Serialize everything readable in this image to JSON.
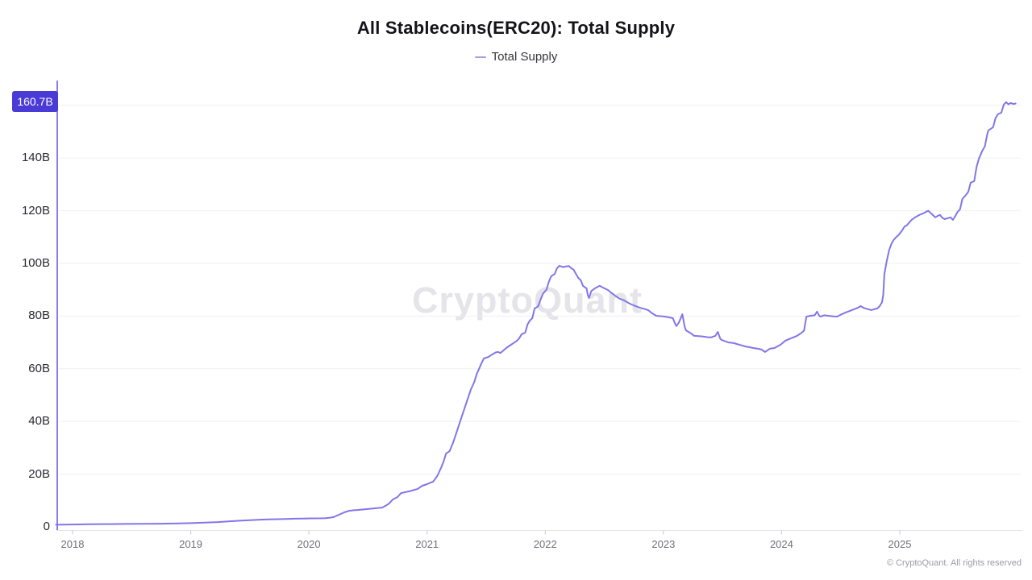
{
  "chart": {
    "title": "All Stablecoins(ERC20): Total Supply",
    "legend": {
      "label": "Total Supply"
    },
    "latest_badge": "160.7B",
    "watermark": "CryptoQuant"
  },
  "footer": {
    "copyright": "© CryptoQuant. All rights reserved"
  },
  "colors": {
    "line": "#8176e9",
    "legend_dash": "#a79ee9",
    "badge_bg": "#4b3bd6",
    "badge_text": "#ffffff",
    "y_axis_line": "#8a7cec",
    "x_axis_line": "#e3e3e8",
    "tick_mark": "#c9c9d0",
    "grid": "#efeff2",
    "watermark": "#e4e4e9"
  },
  "chart_data": {
    "type": "line",
    "title": "All Stablecoins(ERC20): Total Supply",
    "legend_entries": [
      "Total Supply"
    ],
    "legend_position": "top",
    "grid": true,
    "unit": "B",
    "xlim": [
      2017.86,
      2026.0
    ],
    "ylim": [
      0,
      170
    ],
    "x_ticks": [
      2018,
      2019,
      2020,
      2021,
      2022,
      2023,
      2024,
      2025
    ],
    "y_ticks": [
      0,
      20,
      40,
      60,
      80,
      100,
      120,
      140
    ],
    "y_grid": [
      20,
      40,
      60,
      80,
      100,
      120,
      140,
      160
    ],
    "latest": {
      "label": "160.7B",
      "value": 160.7
    },
    "series": [
      {
        "name": "Total Supply",
        "color": "#8176e9",
        "points": [
          [
            2017.86,
            0.8
          ],
          [
            2018.0,
            0.9
          ],
          [
            2018.15,
            1.0
          ],
          [
            2018.3,
            1.05
          ],
          [
            2018.45,
            1.1
          ],
          [
            2018.6,
            1.15
          ],
          [
            2018.75,
            1.2
          ],
          [
            2018.9,
            1.3
          ],
          [
            2019.0,
            1.4
          ],
          [
            2019.1,
            1.55
          ],
          [
            2019.23,
            1.8
          ],
          [
            2019.33,
            2.1
          ],
          [
            2019.43,
            2.4
          ],
          [
            2019.5,
            2.55
          ],
          [
            2019.57,
            2.7
          ],
          [
            2019.65,
            2.8
          ],
          [
            2019.74,
            2.9
          ],
          [
            2019.81,
            3.0
          ],
          [
            2019.88,
            3.1
          ],
          [
            2019.95,
            3.15
          ],
          [
            2020.02,
            3.2
          ],
          [
            2020.1,
            3.25
          ],
          [
            2020.14,
            3.3
          ],
          [
            2020.18,
            3.5
          ],
          [
            2020.21,
            3.7
          ],
          [
            2020.24,
            4.3
          ],
          [
            2020.27,
            4.9
          ],
          [
            2020.3,
            5.5
          ],
          [
            2020.34,
            6.1
          ],
          [
            2020.38,
            6.3
          ],
          [
            2020.41,
            6.4
          ],
          [
            2020.48,
            6.7
          ],
          [
            2020.55,
            7.0
          ],
          [
            2020.62,
            7.3
          ],
          [
            2020.65,
            8.0
          ],
          [
            2020.68,
            8.9
          ],
          [
            2020.71,
            10.4
          ],
          [
            2020.75,
            11.3
          ],
          [
            2020.78,
            12.8
          ],
          [
            2020.82,
            13.2
          ],
          [
            2020.85,
            13.5
          ],
          [
            2020.89,
            14.0
          ],
          [
            2020.92,
            14.4
          ],
          [
            2020.96,
            15.6
          ],
          [
            2021.0,
            16.2
          ],
          [
            2021.03,
            16.8
          ],
          [
            2021.05,
            17.1
          ],
          [
            2021.07,
            18.3
          ],
          [
            2021.09,
            19.6
          ],
          [
            2021.12,
            22.6
          ],
          [
            2021.14,
            24.8
          ],
          [
            2021.16,
            27.8
          ],
          [
            2021.19,
            28.7
          ],
          [
            2021.22,
            32
          ],
          [
            2021.25,
            36
          ],
          [
            2021.28,
            40
          ],
          [
            2021.31,
            44
          ],
          [
            2021.34,
            48
          ],
          [
            2021.37,
            52
          ],
          [
            2021.4,
            55
          ],
          [
            2021.42,
            58
          ],
          [
            2021.44,
            60
          ],
          [
            2021.46,
            62
          ],
          [
            2021.48,
            63.9
          ],
          [
            2021.52,
            64.5
          ],
          [
            2021.55,
            65.4
          ],
          [
            2021.58,
            66.2
          ],
          [
            2021.6,
            66.4
          ],
          [
            2021.62,
            66.0
          ],
          [
            2021.64,
            66.7
          ],
          [
            2021.67,
            67.9
          ],
          [
            2021.69,
            68.5
          ],
          [
            2021.71,
            69.1
          ],
          [
            2021.74,
            70.0
          ],
          [
            2021.76,
            70.6
          ],
          [
            2021.78,
            71.6
          ],
          [
            2021.8,
            73.1
          ],
          [
            2021.83,
            73.7
          ],
          [
            2021.85,
            76.8
          ],
          [
            2021.87,
            78.3
          ],
          [
            2021.89,
            79.2
          ],
          [
            2021.91,
            82.9
          ],
          [
            2021.93,
            83.4
          ],
          [
            2021.94,
            83.8
          ],
          [
            2021.96,
            86.2
          ],
          [
            2021.98,
            88.4
          ],
          [
            2022.0,
            89.5
          ],
          [
            2022.01,
            89.9
          ],
          [
            2022.03,
            93.0
          ],
          [
            2022.05,
            95.1
          ],
          [
            2022.08,
            96.0
          ],
          [
            2022.1,
            98.2
          ],
          [
            2022.12,
            99.1
          ],
          [
            2022.15,
            98.6
          ],
          [
            2022.17,
            98.8
          ],
          [
            2022.2,
            99.0
          ],
          [
            2022.22,
            98.2
          ],
          [
            2022.24,
            97.6
          ],
          [
            2022.26,
            96.0
          ],
          [
            2022.28,
            94.5
          ],
          [
            2022.3,
            93.6
          ],
          [
            2022.32,
            91.4
          ],
          [
            2022.35,
            90.5
          ],
          [
            2022.36,
            88.0
          ],
          [
            2022.37,
            86.9
          ],
          [
            2022.39,
            89.5
          ],
          [
            2022.42,
            90.5
          ],
          [
            2022.44,
            91.0
          ],
          [
            2022.46,
            91.5
          ],
          [
            2022.49,
            90.8
          ],
          [
            2022.53,
            89.9
          ],
          [
            2022.56,
            88.8
          ],
          [
            2022.6,
            87.5
          ],
          [
            2022.63,
            86.6
          ],
          [
            2022.67,
            85.9
          ],
          [
            2022.7,
            85.1
          ],
          [
            2022.73,
            84.4
          ],
          [
            2022.77,
            83.7
          ],
          [
            2022.8,
            83.2
          ],
          [
            2022.84,
            82.7
          ],
          [
            2022.87,
            82.3
          ],
          [
            2022.9,
            81.2
          ],
          [
            2022.94,
            80.1
          ],
          [
            2022.97,
            80.0
          ],
          [
            2023.01,
            79.8
          ],
          [
            2023.05,
            79.5
          ],
          [
            2023.08,
            79.2
          ],
          [
            2023.1,
            77.0
          ],
          [
            2023.11,
            76.2
          ],
          [
            2023.13,
            77.5
          ],
          [
            2023.16,
            80.7
          ],
          [
            2023.18,
            76.0
          ],
          [
            2023.19,
            74.6
          ],
          [
            2023.23,
            73.5
          ],
          [
            2023.26,
            72.5
          ],
          [
            2023.3,
            72.4
          ],
          [
            2023.33,
            72.3
          ],
          [
            2023.37,
            72.0
          ],
          [
            2023.4,
            71.9
          ],
          [
            2023.44,
            72.5
          ],
          [
            2023.46,
            74.0
          ],
          [
            2023.48,
            71.5
          ],
          [
            2023.49,
            71.0
          ],
          [
            2023.52,
            70.5
          ],
          [
            2023.55,
            70.0
          ],
          [
            2023.59,
            69.8
          ],
          [
            2023.62,
            69.4
          ],
          [
            2023.66,
            68.9
          ],
          [
            2023.69,
            68.5
          ],
          [
            2023.73,
            68.2
          ],
          [
            2023.76,
            67.9
          ],
          [
            2023.8,
            67.6
          ],
          [
            2023.83,
            67.3
          ],
          [
            2023.86,
            66.4
          ],
          [
            2023.9,
            67.6
          ],
          [
            2023.94,
            67.9
          ],
          [
            2023.99,
            69.1
          ],
          [
            2024.03,
            70.6
          ],
          [
            2024.08,
            71.6
          ],
          [
            2024.13,
            72.5
          ],
          [
            2024.17,
            73.7
          ],
          [
            2024.19,
            74.5
          ],
          [
            2024.2,
            77.1
          ],
          [
            2024.21,
            79.8
          ],
          [
            2024.24,
            80.1
          ],
          [
            2024.28,
            80.3
          ],
          [
            2024.3,
            81.7
          ],
          [
            2024.32,
            80.0
          ],
          [
            2024.33,
            79.8
          ],
          [
            2024.36,
            80.3
          ],
          [
            2024.4,
            80.1
          ],
          [
            2024.44,
            79.9
          ],
          [
            2024.47,
            79.8
          ],
          [
            2024.5,
            80.5
          ],
          [
            2024.54,
            81.3
          ],
          [
            2024.58,
            82.0
          ],
          [
            2024.63,
            82.9
          ],
          [
            2024.65,
            83.3
          ],
          [
            2024.67,
            83.8
          ],
          [
            2024.69,
            83.2
          ],
          [
            2024.71,
            82.9
          ],
          [
            2024.74,
            82.5
          ],
          [
            2024.76,
            82.3
          ],
          [
            2024.79,
            82.7
          ],
          [
            2024.81,
            82.9
          ],
          [
            2024.83,
            83.8
          ],
          [
            2024.85,
            85.3
          ],
          [
            2024.86,
            88.0
          ],
          [
            2024.87,
            96.0
          ],
          [
            2024.89,
            101.0
          ],
          [
            2024.91,
            105.0
          ],
          [
            2024.93,
            107.5
          ],
          [
            2024.95,
            109.0
          ],
          [
            2024.97,
            110.0
          ],
          [
            2024.99,
            110.8
          ],
          [
            2025.02,
            112.5
          ],
          [
            2025.04,
            114.0
          ],
          [
            2025.06,
            114.5
          ],
          [
            2025.08,
            115.5
          ],
          [
            2025.1,
            116.5
          ],
          [
            2025.13,
            117.5
          ],
          [
            2025.15,
            118.0
          ],
          [
            2025.17,
            118.5
          ],
          [
            2025.2,
            119.0
          ],
          [
            2025.24,
            120.0
          ],
          [
            2025.27,
            118.8
          ],
          [
            2025.3,
            117.5
          ],
          [
            2025.32,
            118.0
          ],
          [
            2025.34,
            118.4
          ],
          [
            2025.36,
            117.3
          ],
          [
            2025.38,
            116.8
          ],
          [
            2025.41,
            117.2
          ],
          [
            2025.43,
            117.5
          ],
          [
            2025.45,
            116.5
          ],
          [
            2025.47,
            118.0
          ],
          [
            2025.49,
            119.6
          ],
          [
            2025.51,
            120.5
          ],
          [
            2025.53,
            124.5
          ],
          [
            2025.56,
            126.0
          ],
          [
            2025.58,
            127.2
          ],
          [
            2025.6,
            130.6
          ],
          [
            2025.63,
            131.2
          ],
          [
            2025.65,
            136.7
          ],
          [
            2025.67,
            139.8
          ],
          [
            2025.7,
            142.9
          ],
          [
            2025.72,
            144.4
          ],
          [
            2025.74,
            149.0
          ],
          [
            2025.75,
            150.5
          ],
          [
            2025.77,
            151.1
          ],
          [
            2025.79,
            151.7
          ],
          [
            2025.81,
            155.1
          ],
          [
            2025.83,
            156.6
          ],
          [
            2025.86,
            157.2
          ],
          [
            2025.88,
            160.3
          ],
          [
            2025.9,
            161.2
          ],
          [
            2025.92,
            160.4
          ],
          [
            2025.94,
            160.9
          ],
          [
            2025.96,
            160.5
          ],
          [
            2025.98,
            160.7
          ]
        ]
      }
    ]
  }
}
